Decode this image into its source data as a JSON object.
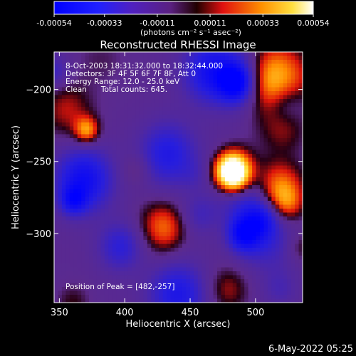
{
  "colorbar": {
    "tick_labels": [
      "-0.00054",
      "-0.00033",
      "-0.00011",
      "0.00011",
      "0.00033",
      "0.00054"
    ],
    "tick_values": [
      -0.00054,
      -0.00033,
      -0.00011,
      0.00011,
      0.00033,
      0.00054
    ],
    "range": [
      -0.00054,
      0.00054
    ],
    "units_label": "(photons cm⁻² s⁻¹ asec⁻²)"
  },
  "chart_data": {
    "type": "heatmap",
    "title": "Reconstructed RHESSI Image",
    "xlabel": "Heliocentric X (arcsec)",
    "ylabel": "Heliocentric Y (arcsec)",
    "xlim": [
      346,
      536
    ],
    "ylim": [
      -348,
      -174
    ],
    "x_ticks": [
      350,
      400,
      450,
      500
    ],
    "y_ticks": [
      -200,
      -250,
      -300
    ],
    "x_tick_labels": [
      "350",
      "400",
      "450",
      "500"
    ],
    "y_tick_labels": [
      "−200",
      "−250",
      "−300"
    ],
    "peak": [
      482,
      -257
    ],
    "annotations": [
      "8-Oct-2003 18:31:32.000 to 18:32:44.000",
      "Detectors: 3F 4F 5F 6F 7F 8F, Att 0",
      "Energy Range: 12.0 - 25.0 keV",
      "Clean      Total counts: 645."
    ],
    "peak_label": "Position of Peak = [482,-257]"
  },
  "footer": {
    "date": "6-May-2022 05:25"
  },
  "colors": {
    "background": "#000000",
    "negative": "#0000ff",
    "neutral": "#5c2a8c",
    "positive": "#ff2000",
    "peak": "#ffffff"
  }
}
